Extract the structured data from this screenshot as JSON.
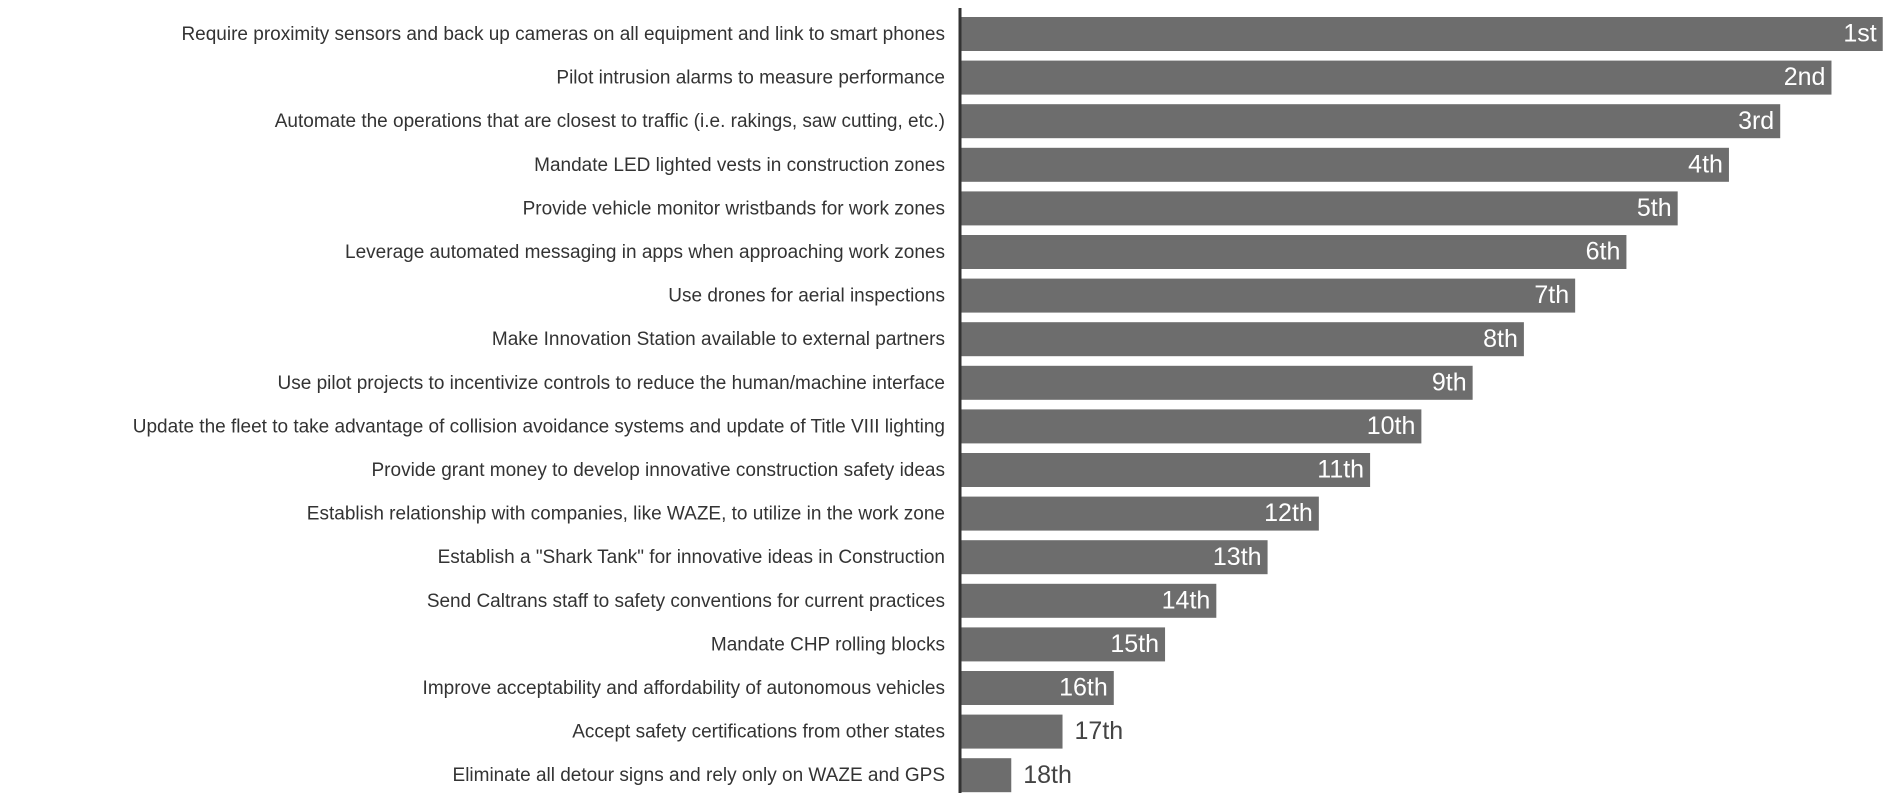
{
  "chart_data": {
    "type": "barh",
    "categories": [
      "Require proximity sensors and back up cameras on all equipment and link to smart phones",
      "Pilot intrusion alarms to measure performance",
      "Automate the operations that are closest to traffic (i.e. rakings, saw cutting, etc.)",
      "Mandate LED lighted vests in construction zones",
      "Provide vehicle monitor wristbands for work zones",
      "Leverage automated messaging in apps when approaching work zones",
      "Use drones for aerial inspections",
      "Make Innovation Station available to external partners",
      "Use pilot projects to incentivize controls to reduce the human/machine interface",
      "Update the fleet to take advantage of collision avoidance systems and update of Title VIII lighting",
      "Provide grant money to develop innovative construction safety ideas",
      "Establish relationship with companies, like WAZE, to utilize in the work zone",
      "Establish a \"Shark Tank\" for innovative ideas in Construction",
      "Send Caltrans staff to safety conventions for current practices",
      "Mandate CHP rolling blocks",
      "Improve acceptability and affordability of autonomous vehicles",
      "Accept safety certifications from other states",
      "Eliminate all detour signs and rely only on WAZE and GPS"
    ],
    "values": [
      1,
      2,
      3,
      4,
      5,
      6,
      7,
      8,
      9,
      10,
      11,
      12,
      13,
      14,
      15,
      16,
      17,
      18
    ],
    "value_labels": [
      "1st",
      "2nd",
      "3rd",
      "4th",
      "5th",
      "6th",
      "7th",
      "8th",
      "9th",
      "10th",
      "11th",
      "12th",
      "13th",
      "14th",
      "15th",
      "16th",
      "17th",
      "18th"
    ],
    "color": "#6d6d6d",
    "xlim": [
      19,
      0
    ]
  }
}
